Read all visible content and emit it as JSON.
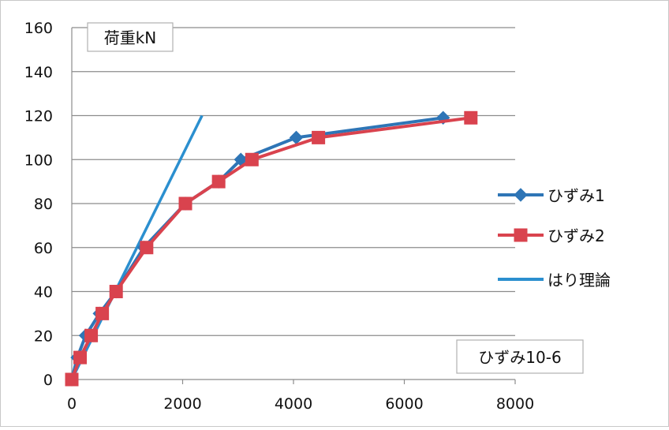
{
  "chart_data": {
    "type": "line",
    "title": "",
    "ylabel": "荷重kN",
    "xlabel": "ひずみ10-6",
    "xlim": [
      0,
      8000
    ],
    "ylim": [
      0,
      160
    ],
    "xticks": [
      "0",
      "2000",
      "4000",
      "6000",
      "8000"
    ],
    "yticks": [
      "0",
      "20",
      "40",
      "60",
      "80",
      "100",
      "120",
      "140",
      "160"
    ],
    "grid": "horizontal",
    "legend_position": "right",
    "series": [
      {
        "name": "ひずみ1",
        "color": "#2e75b6",
        "marker": "diamond",
        "x": [
          0,
          100,
          250,
          500,
          800,
          1300,
          2050,
          2650,
          3050,
          4050,
          6700
        ],
        "y": [
          0,
          10,
          20,
          30,
          40,
          60,
          80,
          90,
          100,
          110,
          119
        ]
      },
      {
        "name": "ひずみ2",
        "color": "#d9434e",
        "marker": "square",
        "x": [
          0,
          150,
          350,
          550,
          800,
          1350,
          2050,
          2650,
          3250,
          4450,
          7200
        ],
        "y": [
          0,
          10,
          20,
          30,
          40,
          60,
          80,
          90,
          100,
          110,
          119
        ]
      },
      {
        "name": "はり理論",
        "color": "#2b8fcf",
        "marker": "none",
        "x": [
          0,
          2350
        ],
        "y": [
          0,
          120
        ]
      }
    ]
  }
}
